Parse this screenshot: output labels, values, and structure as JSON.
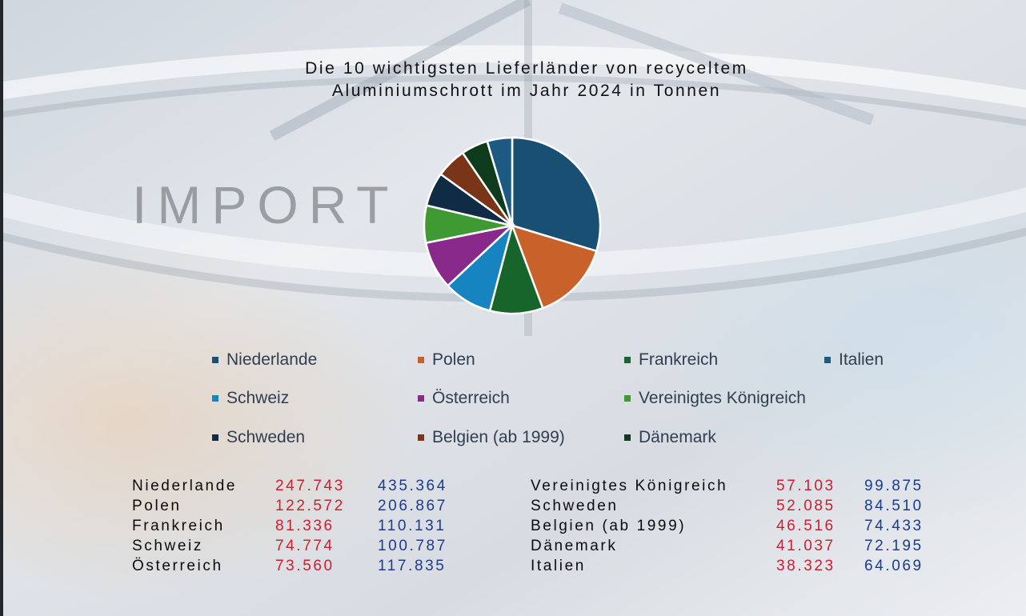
{
  "title_line1": "Die 10 wichtigsten Lieferländer von recyceltem",
  "title_line2": "Aluminiumschrott im Jahr 2024 in Tonnen",
  "watermark": "IMPORT",
  "colors": {
    "value_red": "#cc1f2f",
    "value_blue": "#1b3c8c"
  },
  "chart_data": {
    "type": "pie",
    "title": "Die 10 wichtigsten Lieferländer von recyceltem Aluminiumschrott im Jahr 2024 in Tonnen",
    "legend_position": "bottom",
    "slices": [
      {
        "label": "Niederlande",
        "value": 247.743,
        "value2": 435.364,
        "color": "#1a4f74"
      },
      {
        "label": "Polen",
        "value": 122.572,
        "value2": 206.867,
        "color": "#c8622a"
      },
      {
        "label": "Frankreich",
        "value": 81.336,
        "value2": 110.131,
        "color": "#17652a"
      },
      {
        "label": "Schweiz",
        "value": 74.774,
        "value2": 100.787,
        "color": "#1584c0"
      },
      {
        "label": "Österreich",
        "value": 73.56,
        "value2": 117.835,
        "color": "#892a8b"
      },
      {
        "label": "Vereinigtes Königreich",
        "value": 57.103,
        "value2": 99.875,
        "color": "#3f9a34"
      },
      {
        "label": "Schweden",
        "value": 52.085,
        "value2": 84.51,
        "color": "#0f2c44"
      },
      {
        "label": "Belgien (ab 1999)",
        "value": 46.516,
        "value2": 74.433,
        "color": "#7a3518"
      },
      {
        "label": "Dänemark",
        "value": 41.037,
        "value2": 72.195,
        "color": "#0d3b1c"
      },
      {
        "label": "Italien",
        "value": 38.323,
        "value2": 64.069,
        "color": "#1d5a82"
      }
    ]
  },
  "legend": [
    {
      "label": "Niederlande",
      "color": "#1a4f74"
    },
    {
      "label": "Polen",
      "color": "#c8622a"
    },
    {
      "label": "Frankreich",
      "color": "#17652a"
    },
    {
      "label": "Italien",
      "color": "#1d5a82"
    },
    {
      "label": "Schweiz",
      "color": "#1584c0"
    },
    {
      "label": "Österreich",
      "color": "#892a8b"
    },
    {
      "label": "Vereinigtes Königreich",
      "color": "#3f9a34"
    },
    {
      "label": "Schweden",
      "color": "#0f2c44"
    },
    {
      "label": "Belgien (ab 1999)",
      "color": "#7a3518"
    },
    {
      "label": "Dänemark",
      "color": "#0d3b1c"
    }
  ],
  "table": {
    "left": [
      {
        "name": "Niederlande",
        "v1": "247.743",
        "v2": "435.364"
      },
      {
        "name": "Polen",
        "v1": "122.572",
        "v2": "206.867"
      },
      {
        "name": "Frankreich",
        "v1": "81.336",
        "v2": "110.131"
      },
      {
        "name": "Schweiz",
        "v1": "74.774",
        "v2": "100.787"
      },
      {
        "name": "Österreich",
        "v1": "73.560",
        "v2": "117.835"
      }
    ],
    "right": [
      {
        "name": "Vereinigtes Königreich",
        "v1": "57.103",
        "v2": "99.875"
      },
      {
        "name": "Schweden",
        "v1": "52.085",
        "v2": "84.510"
      },
      {
        "name": "Belgien (ab 1999)",
        "v1": "46.516",
        "v2": "74.433"
      },
      {
        "name": "Dänemark",
        "v1": "41.037",
        "v2": "72.195"
      },
      {
        "name": "Italien",
        "v1": "38.323",
        "v2": "64.069"
      }
    ]
  }
}
